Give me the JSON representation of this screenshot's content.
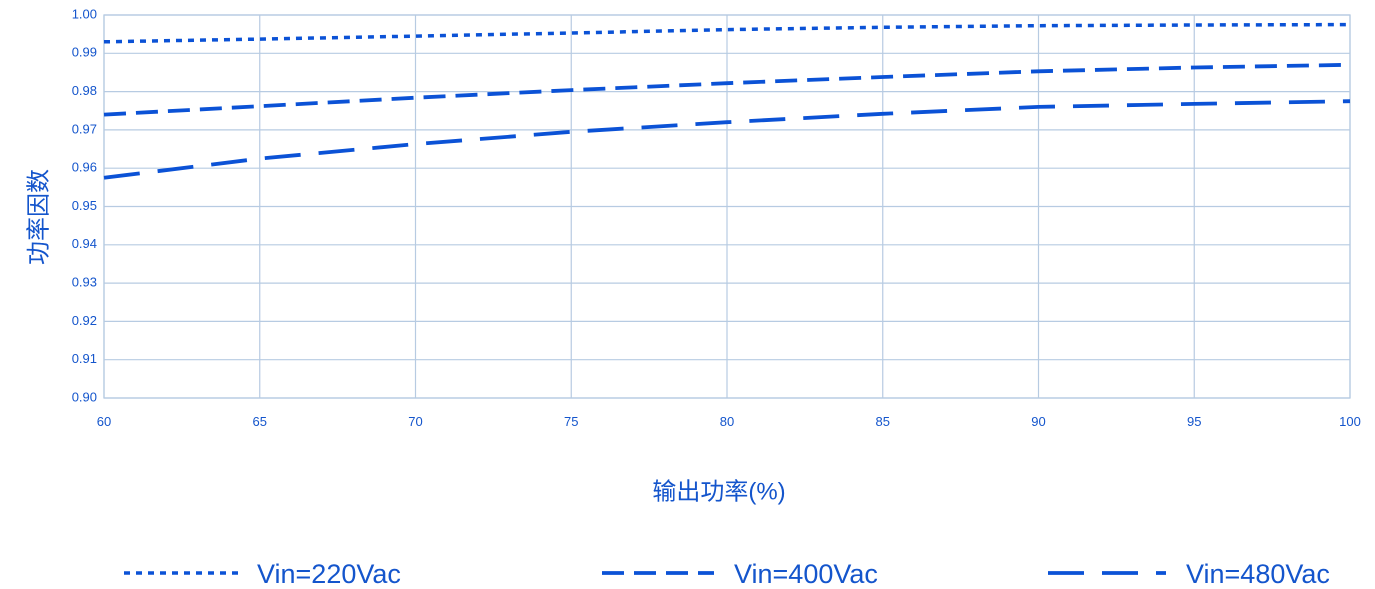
{
  "chart_data": {
    "type": "line",
    "title": "",
    "xlabel": "输出功率(%)",
    "ylabel": "功率因数",
    "xlim": [
      60,
      100
    ],
    "ylim": [
      0.9,
      1.0
    ],
    "grid": true,
    "legend_position": "bottom",
    "x_ticks": [
      60,
      65,
      70,
      75,
      80,
      85,
      90,
      95,
      100
    ],
    "x_tick_labels": [
      "60",
      "65",
      "70",
      "75",
      "80",
      "85",
      "90",
      "95",
      "100"
    ],
    "y_ticks": [
      0.9,
      0.91,
      0.92,
      0.93,
      0.94,
      0.95,
      0.96,
      0.97,
      0.98,
      0.99,
      1.0
    ],
    "y_tick_labels": [
      "0.90",
      "0.91",
      "0.92",
      "0.93",
      "0.94",
      "0.95",
      "0.96",
      "0.97",
      "0.98",
      "0.99",
      "1.00"
    ],
    "series": [
      {
        "name": "Vin=220Vac",
        "line_style": "dotted",
        "x": [
          60,
          65,
          70,
          75,
          80,
          85,
          90,
          95,
          100
        ],
        "values": [
          0.993,
          0.9937,
          0.9945,
          0.9953,
          0.9962,
          0.9968,
          0.9972,
          0.9974,
          0.9975
        ]
      },
      {
        "name": "Vin=400Vac",
        "line_style": "dashed",
        "x": [
          60,
          65,
          70,
          75,
          80,
          85,
          90,
          95,
          100
        ],
        "values": [
          0.974,
          0.9762,
          0.9784,
          0.9804,
          0.9822,
          0.9838,
          0.9853,
          0.9863,
          0.987
        ]
      },
      {
        "name": "Vin=480Vac",
        "line_style": "long-dash",
        "x": [
          60,
          65,
          70,
          75,
          80,
          85,
          90,
          95,
          100
        ],
        "values": [
          0.9575,
          0.9625,
          0.9663,
          0.9695,
          0.972,
          0.9742,
          0.976,
          0.9768,
          0.9775
        ]
      }
    ],
    "colors": {
      "line": "#0b52d6",
      "grid": "#b7cbe2",
      "text": "#1455cc"
    }
  }
}
